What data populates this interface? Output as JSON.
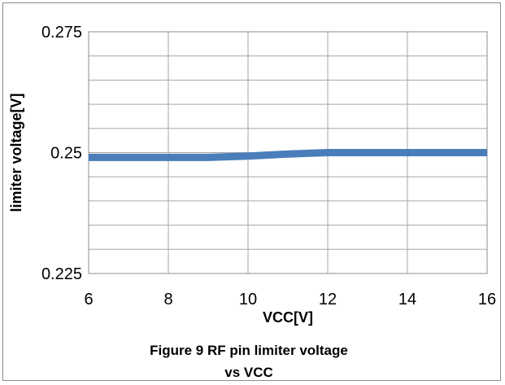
{
  "chart_data": {
    "type": "line",
    "xlabel": "VCC[V]",
    "ylabel": "limiter voltage[V]",
    "caption_lines": [
      "Figure 9 RF pin limiter voltage",
      "vs VCC"
    ],
    "xlim": [
      6,
      16
    ],
    "ylim": [
      0.225,
      0.275
    ],
    "x_ticks": [
      6,
      8,
      10,
      12,
      14,
      16
    ],
    "y_ticks": [
      {
        "value": 0.225,
        "label": "0.225"
      },
      {
        "value": 0.25,
        "label": "0.25"
      },
      {
        "value": 0.275,
        "label": "0.275"
      }
    ],
    "y_minor_gridlines": [
      0.23,
      0.235,
      0.24,
      0.245,
      0.255,
      0.26,
      0.265,
      0.27
    ],
    "grid": true,
    "legend": "none",
    "series": [
      {
        "color": "#4a7ebb",
        "x": [
          6,
          8,
          9,
          10,
          11,
          12,
          14,
          16
        ],
        "y": [
          0.249,
          0.249,
          0.249,
          0.2493,
          0.2497,
          0.25,
          0.25,
          0.25
        ]
      }
    ]
  }
}
